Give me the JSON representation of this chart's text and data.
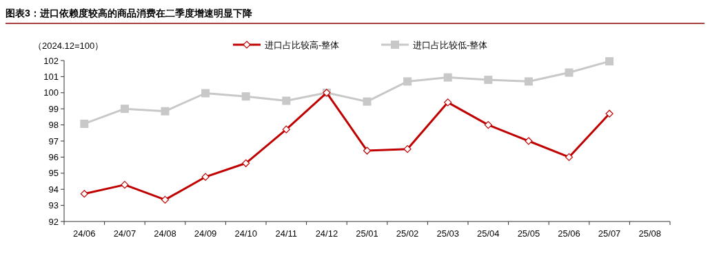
{
  "chart_data": {
    "type": "line",
    "title": "图表3：进口依赖度较高的商品消费在二季度增速明显下降",
    "ylabel": "（2024.12=100）",
    "categories": [
      "24/06",
      "24/07",
      "24/08",
      "24/09",
      "24/10",
      "24/11",
      "24/12",
      "25/01",
      "25/02",
      "25/03",
      "25/04",
      "25/05",
      "25/06",
      "25/07",
      "25/08"
    ],
    "series": [
      {
        "name": "进口占比较高-整体",
        "color": "#c00000",
        "marker": "diamond",
        "values": [
          93.72,
          94.28,
          93.35,
          94.77,
          95.62,
          97.72,
          100,
          96.4,
          96.5,
          99.4,
          98.0,
          97.0,
          96.0,
          98.7,
          null
        ]
      },
      {
        "name": "进口占比较低-整体",
        "color": "#c8c8c8",
        "marker": "square",
        "values": [
          98.07,
          99.0,
          98.85,
          99.97,
          99.77,
          99.5,
          100,
          99.45,
          100.7,
          100.95,
          100.8,
          100.7,
          101.25,
          101.95,
          null
        ]
      }
    ],
    "ylim": [
      92,
      102
    ],
    "yticks": [
      92,
      93,
      94,
      95,
      96,
      97,
      98,
      99,
      100,
      101,
      102
    ],
    "legend": "top",
    "grid": false
  }
}
